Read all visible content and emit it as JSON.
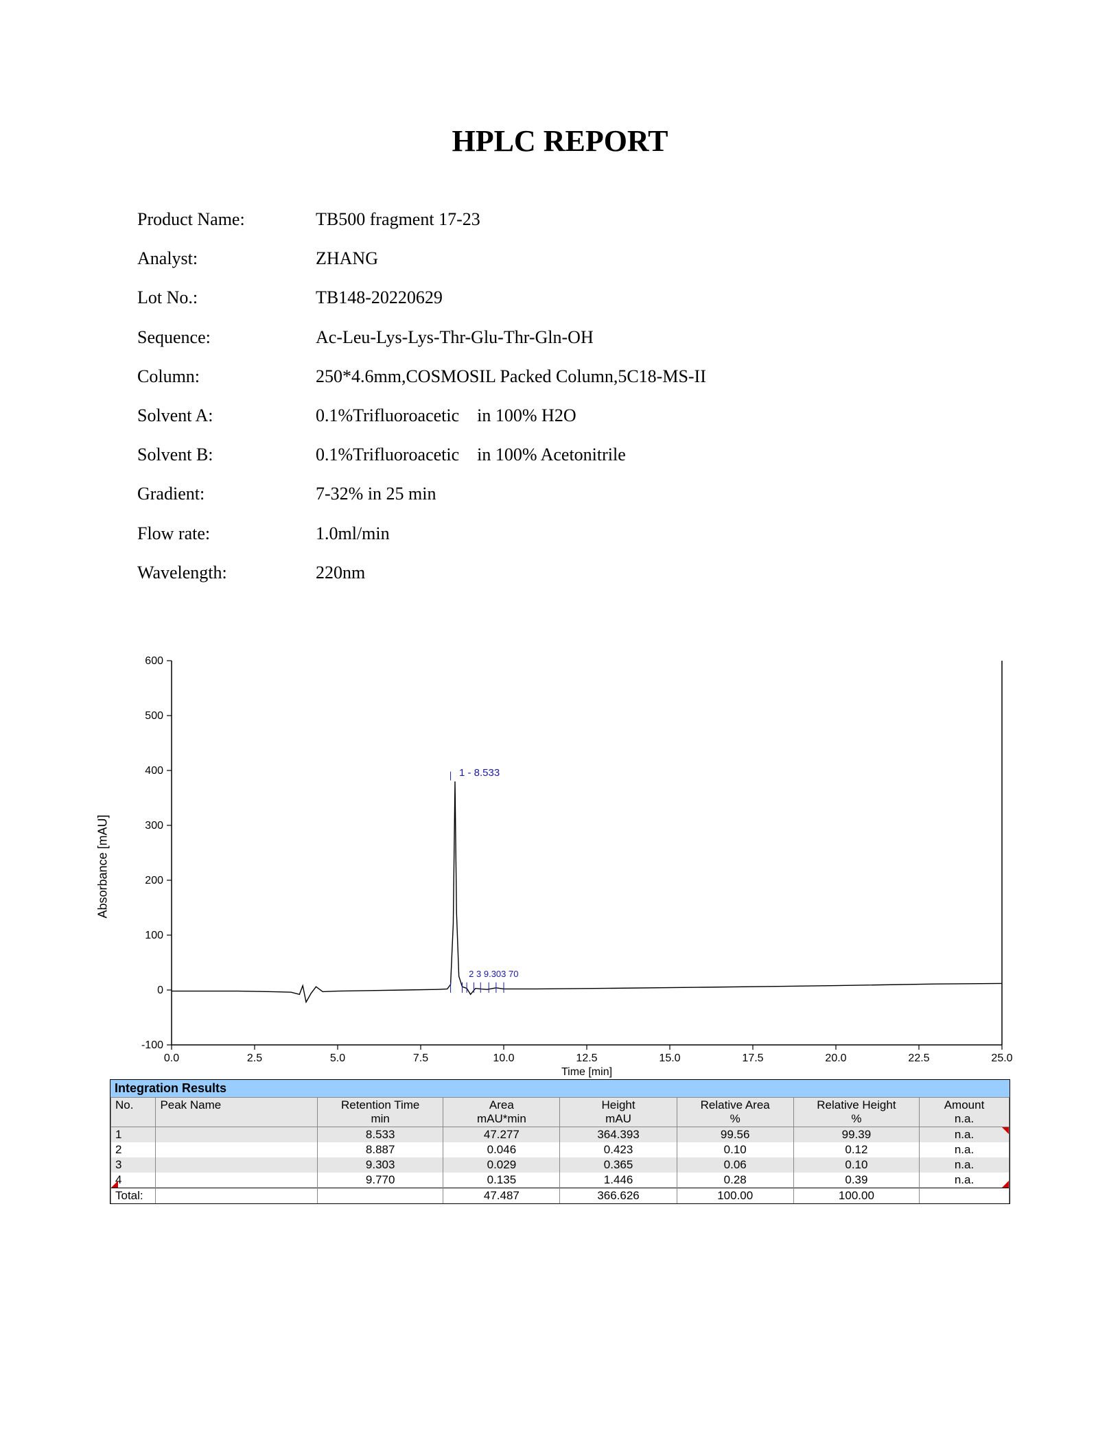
{
  "title": "HPLC REPORT",
  "meta": {
    "rows": [
      {
        "label": "Product Name:",
        "value": "TB500 fragment 17-23"
      },
      {
        "label": "Analyst:",
        "value": "ZHANG"
      },
      {
        "label": "Lot No.:",
        "value": "TB148-20220629"
      },
      {
        "label": "Sequence:",
        "value": "Ac-Leu-Lys-Lys-Thr-Glu-Thr-Gln-OH"
      },
      {
        "label": "Column:",
        "value": "250*4.6mm,COSMOSIL Packed Column,5C18-MS-II"
      },
      {
        "label": "Solvent A:",
        "value": "0.1%Trifluoroacetic    in 100% H2O"
      },
      {
        "label": "Solvent B:",
        "value": "0.1%Trifluoroacetic    in 100% Acetonitrile"
      },
      {
        "label": "Gradient:",
        "value": "7-32% in 25 min"
      },
      {
        "label": "Flow rate:",
        "value": "1.0ml/min"
      },
      {
        "label": "Wavelength:",
        "value": "220nm"
      }
    ]
  },
  "chart": {
    "type": "line",
    "ylabel": "Absorbance [mAU]",
    "xlabel": "Time [min]",
    "xlim": [
      0,
      25
    ],
    "ylim": [
      -100,
      600
    ],
    "xticks": [
      0.0,
      2.5,
      5.0,
      7.5,
      10.0,
      12.5,
      15.0,
      17.5,
      20.0,
      22.5,
      25.0
    ],
    "yticks": [
      -100,
      0,
      100,
      200,
      300,
      400,
      500,
      600
    ],
    "axis_color": "#000000",
    "tick_font": 16,
    "line_color": "#000000",
    "line_width": 1.4,
    "background_color": "#ffffff",
    "peak_label_color": "#1a1aa6",
    "peak_marker_color": "#1a1aa6",
    "main_label": "1 - 8.533",
    "minor_label": "2  3  9.303 70",
    "series": [
      {
        "x": 0.0,
        "y": -2
      },
      {
        "x": 1.0,
        "y": -2
      },
      {
        "x": 2.0,
        "y": -2
      },
      {
        "x": 3.0,
        "y": -3
      },
      {
        "x": 3.6,
        "y": -4
      },
      {
        "x": 3.85,
        "y": -8
      },
      {
        "x": 3.95,
        "y": 8
      },
      {
        "x": 4.05,
        "y": -22
      },
      {
        "x": 4.2,
        "y": -6
      },
      {
        "x": 4.35,
        "y": 6
      },
      {
        "x": 4.55,
        "y": -3
      },
      {
        "x": 5.0,
        "y": -2
      },
      {
        "x": 6.0,
        "y": -1
      },
      {
        "x": 7.0,
        "y": 0
      },
      {
        "x": 8.0,
        "y": 1
      },
      {
        "x": 8.3,
        "y": 2
      },
      {
        "x": 8.4,
        "y": 10
      },
      {
        "x": 8.48,
        "y": 120
      },
      {
        "x": 8.533,
        "y": 380
      },
      {
        "x": 8.58,
        "y": 140
      },
      {
        "x": 8.65,
        "y": 25
      },
      {
        "x": 8.75,
        "y": 6
      },
      {
        "x": 8.887,
        "y": 3
      },
      {
        "x": 9.0,
        "y": -8
      },
      {
        "x": 9.15,
        "y": 3
      },
      {
        "x": 9.303,
        "y": 2
      },
      {
        "x": 9.5,
        "y": 1
      },
      {
        "x": 9.77,
        "y": 4
      },
      {
        "x": 10.0,
        "y": 2
      },
      {
        "x": 11.0,
        "y": 2
      },
      {
        "x": 13.0,
        "y": 3
      },
      {
        "x": 16.0,
        "y": 5
      },
      {
        "x": 20.0,
        "y": 8
      },
      {
        "x": 23.0,
        "y": 11
      },
      {
        "x": 25.0,
        "y": 12
      }
    ],
    "peak_markers_x": [
      8.4,
      8.75,
      8.887,
      9.1,
      9.303,
      9.55,
      9.77,
      10.0
    ]
  },
  "integration": {
    "title": "Integration Results",
    "columns_top": [
      "No.",
      "Peak Name",
      "Retention Time",
      "Area",
      "Height",
      "Relative Area",
      "Relative Height",
      "Amount"
    ],
    "columns_bot": [
      "",
      "",
      "min",
      "mAU*min",
      "mAU",
      "%",
      "%",
      "n.a."
    ],
    "col_widths": [
      "5%",
      "18%",
      "14%",
      "13%",
      "13%",
      "13%",
      "14%",
      "10%"
    ],
    "rows": [
      [
        "1",
        "",
        "8.533",
        "47.277",
        "364.393",
        "99.56",
        "99.39",
        "n.a."
      ],
      [
        "2",
        "",
        "8.887",
        "0.046",
        "0.423",
        "0.10",
        "0.12",
        "n.a."
      ],
      [
        "3",
        "",
        "9.303",
        "0.029",
        "0.365",
        "0.06",
        "0.10",
        "n.a."
      ],
      [
        "4",
        "",
        "9.770",
        "0.135",
        "1.446",
        "0.28",
        "0.39",
        "n.a."
      ]
    ],
    "total": [
      "Total:",
      "",
      "",
      "47.487",
      "366.626",
      "100.00",
      "100.00",
      ""
    ]
  }
}
